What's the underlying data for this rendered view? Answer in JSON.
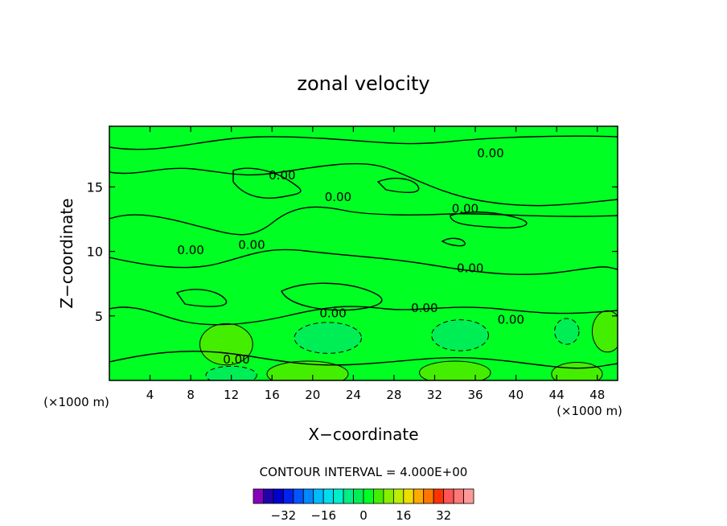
{
  "chart_data": {
    "type": "heatmap",
    "title": "zonal velocity",
    "xlabel": "X−coordinate",
    "ylabel": "Z−coordinate",
    "x_unit_left": "(×1000 m)",
    "x_unit_right": "(×1000 m)",
    "xlim": [
      0,
      50
    ],
    "ylim": [
      0,
      19.7
    ],
    "xticks": [
      4,
      8,
      12,
      16,
      20,
      24,
      28,
      32,
      36,
      40,
      44,
      48
    ],
    "xtick_labels": [
      "4",
      "8",
      "12",
      "16",
      "20",
      "24",
      "28",
      "32",
      "36",
      "40",
      "44",
      "48"
    ],
    "yticks": [
      5,
      10,
      15
    ],
    "ytick_labels": [
      "5",
      "10",
      "15"
    ],
    "background_value": 0,
    "contour_labels": [
      {
        "text": "0.00",
        "x": 17.0,
        "y": 15.6
      },
      {
        "text": "0.00",
        "x": 22.5,
        "y": 13.9
      },
      {
        "text": "0.00",
        "x": 35.0,
        "y": 13.0
      },
      {
        "text": "0.00",
        "x": 37.5,
        "y": 17.3
      },
      {
        "text": "0.00",
        "x": 8.0,
        "y": 9.8
      },
      {
        "text": "0.00",
        "x": 14.0,
        "y": 10.2
      },
      {
        "text": "0.00",
        "x": 35.5,
        "y": 8.4
      },
      {
        "text": "0.00",
        "x": 22.0,
        "y": 4.9
      },
      {
        "text": "0.00",
        "x": 31.0,
        "y": 5.3
      },
      {
        "text": "0.00",
        "x": 39.5,
        "y": 4.4
      },
      {
        "text": "0.00",
        "x": 12.5,
        "y": 1.3
      }
    ],
    "regions": [
      {
        "value": 4,
        "x": 11.5,
        "y": 2.8,
        "rx": 2.6,
        "ry": 1.6
      },
      {
        "value": 4,
        "x": 19.5,
        "y": 0.5,
        "rx": 4.0,
        "ry": 1.0
      },
      {
        "value": 4,
        "x": 34.0,
        "y": 0.6,
        "rx": 3.5,
        "ry": 0.9
      },
      {
        "value": 4,
        "x": 46.0,
        "y": 0.5,
        "rx": 2.5,
        "ry": 0.9
      },
      {
        "value": 4,
        "x": 49.0,
        "y": 3.8,
        "rx": 1.5,
        "ry": 1.6
      },
      {
        "value": -4,
        "x": 21.5,
        "y": 3.3,
        "rx": 3.3,
        "ry": 1.2
      },
      {
        "value": -4,
        "x": 34.5,
        "y": 3.5,
        "rx": 2.8,
        "ry": 1.2
      },
      {
        "value": -4,
        "x": 45.0,
        "y": 3.8,
        "rx": 1.2,
        "ry": 1.0
      },
      {
        "value": -4,
        "x": 12.0,
        "y": 0.4,
        "rx": 2.5,
        "ry": 0.7
      }
    ],
    "contour_interval_text": "CONTOUR INTERVAL = 4.000E+00",
    "colorbar": {
      "levels": [
        -40,
        -36,
        -32,
        -28,
        -24,
        -20,
        -16,
        -12,
        -8,
        -4,
        0,
        4,
        8,
        12,
        16,
        20,
        24,
        28,
        32,
        36,
        40
      ],
      "colors": [
        "#8800bb",
        "#2200aa",
        "#0000cc",
        "#0022ee",
        "#0055ff",
        "#0088ff",
        "#00bbff",
        "#00ddee",
        "#00eecc",
        "#00ee88",
        "#00ee55",
        "#00ff22",
        "#44ee00",
        "#88ee00",
        "#bbee00",
        "#eedd00",
        "#ffaa00",
        "#ff7700",
        "#ff3300",
        "#ff5555",
        "#ff7777",
        "#ff9999"
      ],
      "tick_labels": [
        "−32",
        "−16",
        "0",
        "16",
        "32"
      ],
      "tick_values": [
        -32,
        -16,
        0,
        16,
        32
      ]
    },
    "grid": false,
    "legend": "colorbar-bottom"
  }
}
